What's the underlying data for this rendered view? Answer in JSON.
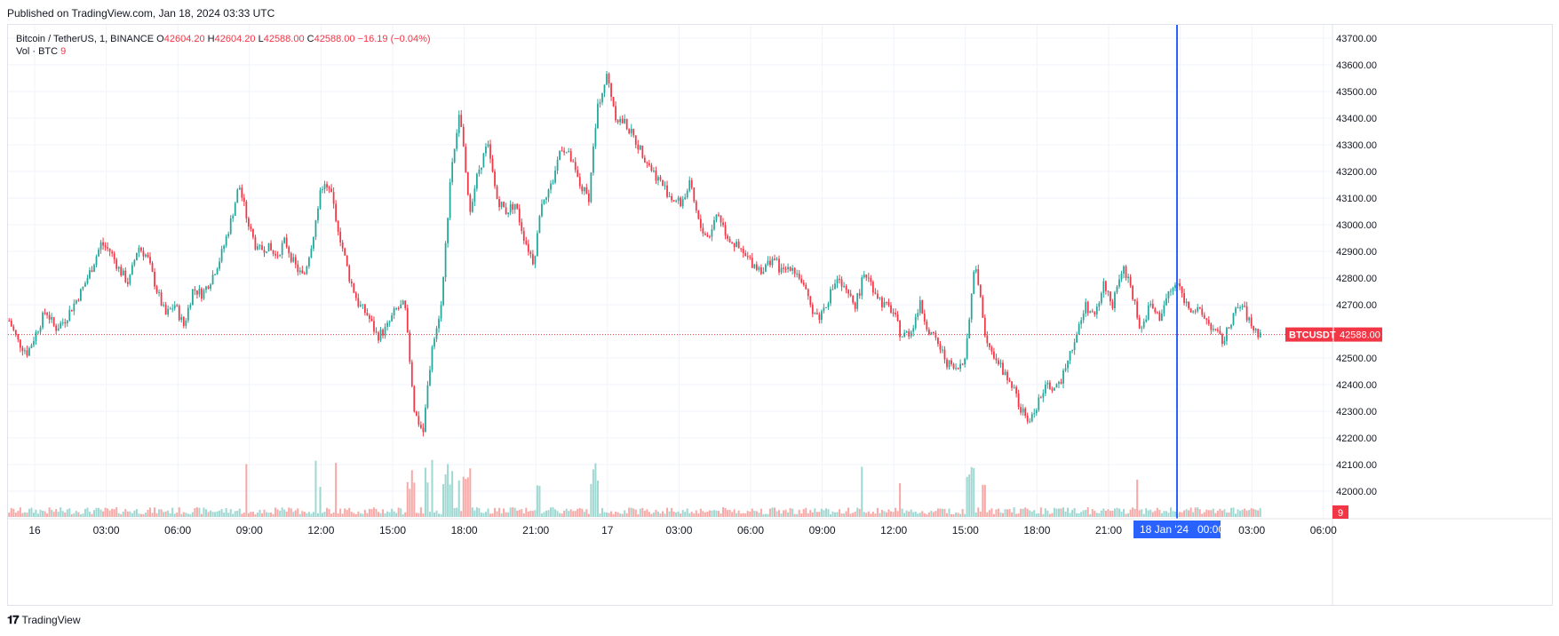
{
  "header": {
    "published": "Published on TradingView.com, Jan 18, 2024 03:33 UTC"
  },
  "legend": {
    "symbol": "Bitcoin / TetherUS, 1, BINANCE",
    "o_label": "O",
    "o_value": "42604.20",
    "h_label": "H",
    "h_value": "42604.20",
    "l_label": "L",
    "l_value": "42588.00",
    "c_label": "C",
    "c_value": "42588.00",
    "change": "−16.19 (−0.04%)",
    "vol_label": "Vol · BTC",
    "vol_value": "9"
  },
  "price_tag": {
    "symbol": "BTCUSDT",
    "value": "42588.00"
  },
  "volume_tag": "9",
  "crosshair_label": "18 Jan '24   00:00",
  "footer": {
    "brand": "TradingView"
  },
  "colors": {
    "up": "#26a69a",
    "down": "#f23645",
    "crosshair": "#2962ff",
    "grid": "#f0f3fa"
  },
  "chart_data": {
    "type": "candlestick",
    "y_ticks": [
      "43700.00",
      "43600.00",
      "43500.00",
      "43400.00",
      "43300.00",
      "43200.00",
      "43100.00",
      "43000.00",
      "42900.00",
      "42800.00",
      "42700.00",
      "42600.00",
      "42500.00",
      "42400.00",
      "42300.00",
      "42200.00",
      "42100.00",
      "42000.00"
    ],
    "x_ticks": [
      "16",
      "03:00",
      "06:00",
      "09:00",
      "12:00",
      "15:00",
      "18:00",
      "21:00",
      "17",
      "03:00",
      "06:00",
      "09:00",
      "12:00",
      "15:00",
      "18:00",
      "21:00",
      "",
      "03:00",
      "06:00"
    ],
    "ylim": [
      41950,
      43750
    ],
    "last_close": 42588.0,
    "crosshair_time": "18 Jan '24 00:00",
    "series": [
      {
        "name": "price",
        "values": [
          42640,
          42560,
          42520,
          42600,
          42680,
          42610,
          42640,
          42700,
          42760,
          42840,
          42930,
          42900,
          42830,
          42780,
          42920,
          42880,
          42760,
          42660,
          42700,
          42620,
          42760,
          42740,
          42800,
          42880,
          43000,
          43150,
          43000,
          42900,
          42920,
          42880,
          42940,
          42850,
          42800,
          42950,
          43150,
          43120,
          42950,
          42800,
          42700,
          42660,
          42580,
          42610,
          42680,
          42700,
          42300,
          42220,
          42560,
          42700,
          43200,
          43420,
          43050,
          43200,
          43300,
          43100,
          43050,
          43080,
          42950,
          42860,
          43100,
          43150,
          43300,
          43250,
          43150,
          43100,
          43450,
          43560,
          43400,
          43380,
          43320,
          43260,
          43200,
          43150,
          43100,
          43080,
          43150,
          43000,
          42950,
          43050,
          42960,
          42920,
          42880,
          42850,
          42830,
          42880,
          42820,
          42850,
          42800,
          42700,
          42650,
          42720,
          42800,
          42740,
          42700,
          42820,
          42760,
          42700,
          42680,
          42580,
          42600,
          42700,
          42600,
          42550,
          42480,
          42450,
          42520,
          42880,
          42600,
          42520,
          42450,
          42400,
          42300,
          42260,
          42350,
          42400,
          42380,
          42500,
          42580,
          42700,
          42650,
          42780,
          42700,
          42840,
          42760,
          42600,
          42700,
          42650,
          42740,
          42780,
          42700,
          42680,
          42650,
          42600,
          42560,
          42660,
          42700,
          42620,
          42588
        ]
      }
    ],
    "volume_max_note": "volume bars shown at bottom"
  }
}
